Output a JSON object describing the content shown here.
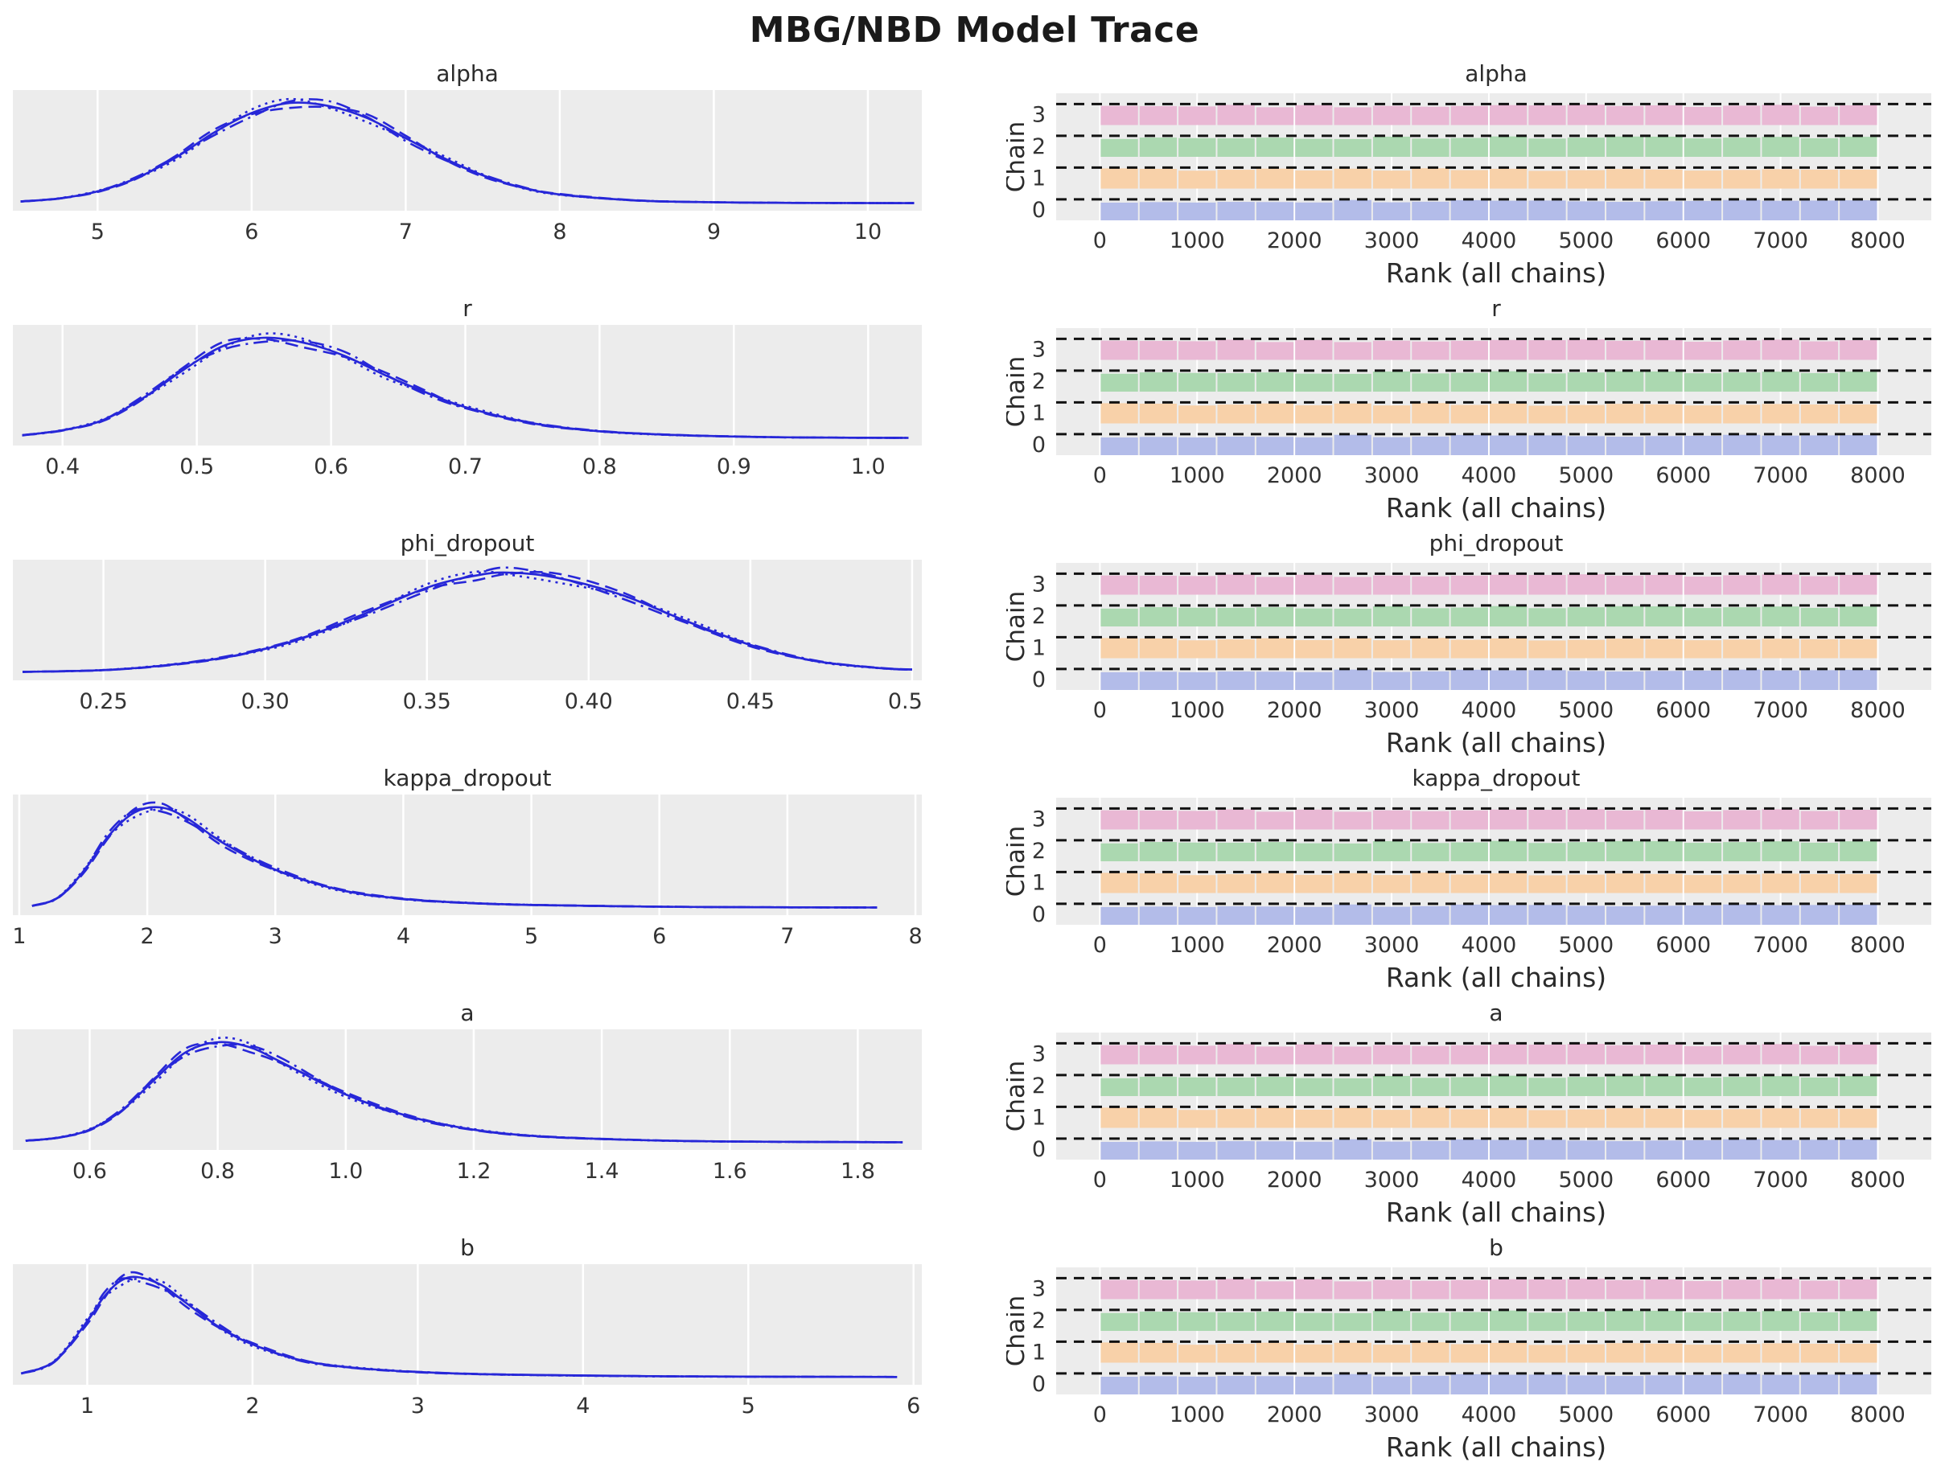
{
  "title": "MBG/NBD Model Trace",
  "style": {
    "panel_bg": "#ececec",
    "grid_color": "#ffffff",
    "kde_color": "#2727d8",
    "tick_color": "#333333",
    "rank_line_color": "#111111",
    "chain_colors": [
      "#b3bce9",
      "#f8d1a9",
      "#abd8b0",
      "#e9b8d4"
    ]
  },
  "chart_data": [
    {
      "name": "alpha",
      "kde": {
        "type": "kde",
        "n_chains": 4,
        "xlim": [
          4.45,
          10.35
        ],
        "xticks": [
          5,
          6,
          7,
          8,
          9,
          10
        ],
        "xtick_labels": [
          "5",
          "6",
          "7",
          "8",
          "9",
          "10"
        ],
        "x": [
          4.5,
          4.75,
          5.0,
          5.25,
          5.5,
          5.75,
          6.0,
          6.25,
          6.5,
          6.75,
          7.0,
          7.25,
          7.5,
          7.75,
          8.0,
          8.5,
          9.0,
          9.5,
          10.0,
          10.3
        ],
        "density": [
          0.02,
          0.05,
          0.12,
          0.25,
          0.45,
          0.7,
          0.9,
          1.0,
          0.97,
          0.85,
          0.65,
          0.45,
          0.28,
          0.16,
          0.09,
          0.03,
          0.012,
          0.006,
          0.004,
          0.003
        ],
        "mode": 6.3
      },
      "rank": {
        "type": "rank_bars",
        "xlabel": "Rank (all chains)",
        "ylabel": "Chain",
        "chains": [
          0,
          1,
          2,
          3
        ],
        "yticks": [
          0,
          1,
          2,
          3
        ],
        "xlim": [
          -450,
          8550
        ],
        "xticks": [
          0,
          1000,
          2000,
          3000,
          4000,
          5000,
          6000,
          7000,
          8000
        ],
        "xtick_labels": [
          "0",
          "1000",
          "2000",
          "3000",
          "4000",
          "5000",
          "6000",
          "7000",
          "8000"
        ],
        "uniform": true
      }
    },
    {
      "name": "r",
      "kde": {
        "type": "kde",
        "n_chains": 4,
        "xlim": [
          0.363,
          1.04
        ],
        "xticks": [
          0.4,
          0.5,
          0.6,
          0.7,
          0.8,
          0.9,
          1.0
        ],
        "xtick_labels": [
          "0.4",
          "0.5",
          "0.6",
          "0.7",
          "0.8",
          "0.9",
          "1.0"
        ],
        "x": [
          0.37,
          0.4,
          0.43,
          0.46,
          0.49,
          0.52,
          0.55,
          0.58,
          0.61,
          0.64,
          0.67,
          0.7,
          0.75,
          0.8,
          0.85,
          0.9,
          0.95,
          1.03
        ],
        "density": [
          0.03,
          0.08,
          0.18,
          0.4,
          0.68,
          0.92,
          1.0,
          0.95,
          0.82,
          0.63,
          0.46,
          0.31,
          0.15,
          0.07,
          0.035,
          0.018,
          0.008,
          0.004
        ],
        "mode": 0.55
      },
      "rank": {
        "type": "rank_bars",
        "xlabel": "Rank (all chains)",
        "ylabel": "Chain",
        "chains": [
          0,
          1,
          2,
          3
        ],
        "yticks": [
          0,
          1,
          2,
          3
        ],
        "xlim": [
          -450,
          8550
        ],
        "xticks": [
          0,
          1000,
          2000,
          3000,
          4000,
          5000,
          6000,
          7000,
          8000
        ],
        "xtick_labels": [
          "0",
          "1000",
          "2000",
          "3000",
          "4000",
          "5000",
          "6000",
          "7000",
          "8000"
        ],
        "uniform": true
      }
    },
    {
      "name": "phi_dropout",
      "kde": {
        "type": "kde",
        "n_chains": 4,
        "xlim": [
          0.222,
          0.503
        ],
        "xticks": [
          0.25,
          0.3,
          0.35,
          0.4,
          0.45,
          0.5
        ],
        "xtick_labels": [
          "0.25",
          "0.30",
          "0.35",
          "0.40",
          "0.45",
          "0.50"
        ],
        "x": [
          0.225,
          0.25,
          0.27,
          0.29,
          0.31,
          0.33,
          0.35,
          0.365,
          0.375,
          0.39,
          0.41,
          0.43,
          0.45,
          0.47,
          0.49,
          0.5
        ],
        "density": [
          0.012,
          0.03,
          0.08,
          0.17,
          0.33,
          0.58,
          0.85,
          0.97,
          1.0,
          0.95,
          0.78,
          0.52,
          0.28,
          0.12,
          0.05,
          0.035
        ],
        "mode": 0.375
      },
      "rank": {
        "type": "rank_bars",
        "xlabel": "Rank (all chains)",
        "ylabel": "Chain",
        "chains": [
          0,
          1,
          2,
          3
        ],
        "yticks": [
          0,
          1,
          2,
          3
        ],
        "xlim": [
          -450,
          8550
        ],
        "xticks": [
          0,
          1000,
          2000,
          3000,
          4000,
          5000,
          6000,
          7000,
          8000
        ],
        "xtick_labels": [
          "0",
          "1000",
          "2000",
          "3000",
          "4000",
          "5000",
          "6000",
          "7000",
          "8000"
        ],
        "uniform": true
      }
    },
    {
      "name": "kappa_dropout",
      "kde": {
        "type": "kde",
        "n_chains": 4,
        "xlim": [
          0.95,
          8.05
        ],
        "xticks": [
          1,
          2,
          3,
          4,
          5,
          6,
          7,
          8
        ],
        "xtick_labels": [
          "1",
          "2",
          "3",
          "4",
          "5",
          "6",
          "7",
          "8"
        ],
        "x": [
          1.1,
          1.3,
          1.5,
          1.7,
          1.9,
          2.1,
          2.3,
          2.6,
          3.0,
          3.5,
          4.0,
          4.5,
          5.0,
          6.0,
          7.0,
          7.7
        ],
        "density": [
          0.02,
          0.1,
          0.36,
          0.72,
          0.95,
          1.0,
          0.9,
          0.64,
          0.38,
          0.18,
          0.09,
          0.05,
          0.03,
          0.012,
          0.006,
          0.004
        ],
        "mode": 2.1
      },
      "rank": {
        "type": "rank_bars",
        "xlabel": "Rank (all chains)",
        "ylabel": "Chain",
        "chains": [
          0,
          1,
          2,
          3
        ],
        "yticks": [
          0,
          1,
          2,
          3
        ],
        "xlim": [
          -450,
          8550
        ],
        "xticks": [
          0,
          1000,
          2000,
          3000,
          4000,
          5000,
          6000,
          7000,
          8000
        ],
        "xtick_labels": [
          "0",
          "1000",
          "2000",
          "3000",
          "4000",
          "5000",
          "6000",
          "7000",
          "8000"
        ],
        "uniform": true
      }
    },
    {
      "name": "a",
      "kde": {
        "type": "kde",
        "n_chains": 4,
        "xlim": [
          0.48,
          1.9
        ],
        "xticks": [
          0.6,
          0.8,
          1.0,
          1.2,
          1.4,
          1.6,
          1.8
        ],
        "xtick_labels": [
          "0.6",
          "0.8",
          "1.0",
          "1.2",
          "1.4",
          "1.6",
          "1.8"
        ],
        "x": [
          0.5,
          0.55,
          0.6,
          0.65,
          0.7,
          0.75,
          0.8,
          0.85,
          0.9,
          1.0,
          1.1,
          1.2,
          1.3,
          1.45,
          1.6,
          1.87
        ],
        "density": [
          0.02,
          0.05,
          0.13,
          0.32,
          0.62,
          0.9,
          1.0,
          0.95,
          0.8,
          0.48,
          0.26,
          0.13,
          0.065,
          0.028,
          0.012,
          0.005
        ],
        "mode": 0.8
      },
      "rank": {
        "type": "rank_bars",
        "xlabel": "Rank (all chains)",
        "ylabel": "Chain",
        "chains": [
          0,
          1,
          2,
          3
        ],
        "yticks": [
          0,
          1,
          2,
          3
        ],
        "xlim": [
          -450,
          8550
        ],
        "xticks": [
          0,
          1000,
          2000,
          3000,
          4000,
          5000,
          6000,
          7000,
          8000
        ],
        "xtick_labels": [
          "0",
          "1000",
          "2000",
          "3000",
          "4000",
          "5000",
          "6000",
          "7000",
          "8000"
        ],
        "uniform": true
      }
    },
    {
      "name": "b",
      "kde": {
        "type": "kde",
        "n_chains": 4,
        "xlim": [
          0.55,
          6.05
        ],
        "xticks": [
          1,
          2,
          3,
          4,
          5,
          6
        ],
        "xtick_labels": [
          "1",
          "2",
          "3",
          "4",
          "5",
          "6"
        ],
        "x": [
          0.6,
          0.8,
          1.0,
          1.1,
          1.2,
          1.3,
          1.45,
          1.6,
          1.8,
          2.0,
          2.3,
          2.6,
          3.0,
          3.5,
          4.5,
          5.9
        ],
        "density": [
          0.04,
          0.16,
          0.56,
          0.8,
          0.96,
          1.0,
          0.92,
          0.74,
          0.5,
          0.33,
          0.17,
          0.1,
          0.055,
          0.03,
          0.012,
          0.006
        ],
        "mode": 1.3
      },
      "rank": {
        "type": "rank_bars",
        "xlabel": "Rank (all chains)",
        "ylabel": "Chain",
        "chains": [
          0,
          1,
          2,
          3
        ],
        "yticks": [
          0,
          1,
          2,
          3
        ],
        "xlim": [
          -450,
          8550
        ],
        "xticks": [
          0,
          1000,
          2000,
          3000,
          4000,
          5000,
          6000,
          7000,
          8000
        ],
        "xtick_labels": [
          "0",
          "1000",
          "2000",
          "3000",
          "4000",
          "5000",
          "6000",
          "7000",
          "8000"
        ],
        "uniform": true
      }
    }
  ]
}
